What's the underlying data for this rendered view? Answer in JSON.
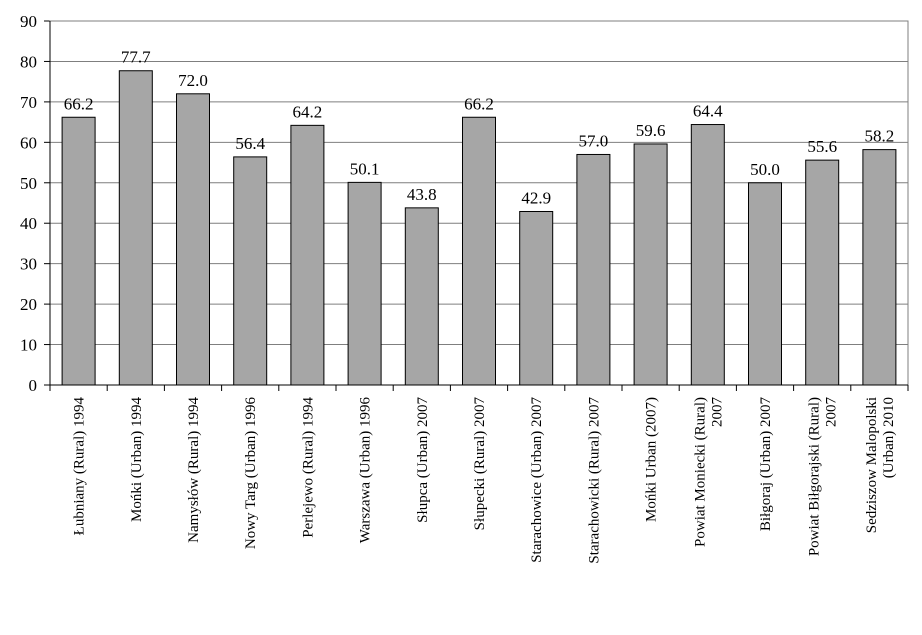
{
  "chart_data": {
    "type": "bar",
    "title": "",
    "xlabel": "",
    "ylabel": "",
    "ylim": [
      0,
      90
    ],
    "yticks": [
      0,
      10,
      20,
      30,
      40,
      50,
      60,
      70,
      80,
      90
    ],
    "grid": true,
    "legend": "none",
    "bar_color": "#a6a6a6",
    "categories": [
      [
        "Łubniany (Rural) 1994"
      ],
      [
        "Mońki (Urban) 1994"
      ],
      [
        "Namysłów (Rural) 1994"
      ],
      [
        "Nowy Targ (Urban) 1996"
      ],
      [
        "Perlejewo (Rural) 1994"
      ],
      [
        "Warszawa  (Urban) 1996"
      ],
      [
        "Słupca (Urban) 2007"
      ],
      [
        "Słupecki (Rural) 2007"
      ],
      [
        "Starachowice (Urban) 2007"
      ],
      [
        "Starachowicki (Rural) 2007"
      ],
      [
        "Mońki Urban (2007)"
      ],
      [
        "Powiat Moniecki (Rural)",
        "2007"
      ],
      [
        "Biłgoraj (Urban) 2007"
      ],
      [
        "Powiat Biłgorajski (Rural)",
        "2007"
      ],
      [
        "Sedziszow Malopolski",
        "(Urban) 2010"
      ]
    ],
    "values": [
      66.2,
      77.7,
      72.0,
      56.4,
      64.2,
      50.1,
      43.8,
      66.2,
      42.9,
      57.0,
      59.6,
      64.4,
      50.0,
      55.6,
      58.2
    ],
    "data_labels": [
      "66.2",
      "77.7",
      "72.0",
      "56.4",
      "64.2",
      "50.1",
      "43.8",
      "66.2",
      "42.9",
      "57.0",
      "59.6",
      "64.4",
      "50.0",
      "55.6",
      "58.2"
    ]
  }
}
